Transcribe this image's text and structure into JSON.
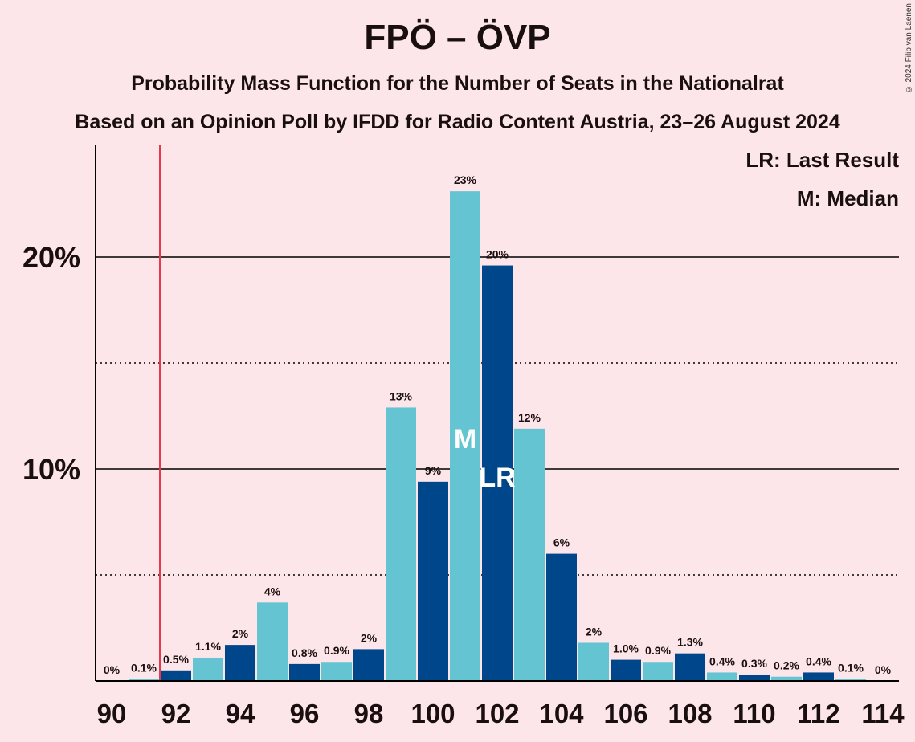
{
  "header": {
    "title": "FPÖ – ÖVP",
    "subtitle": "Probability Mass Function for the Number of Seats in the Nationalrat",
    "subtitle2": "Based on an Opinion Poll by IFDD for Radio Content Austria, 23–26 August 2024",
    "copyright": "© 2024 Filip van Laenen"
  },
  "legend": {
    "lr": "LR: Last Result",
    "median": "M: Median"
  },
  "colors": {
    "background": "#FDE6E9",
    "dark_blue": "#00468B",
    "light_blue": "#64C4D2",
    "last_result_line": "#E8384F",
    "axis": "#000000"
  },
  "chart_data": {
    "type": "bar",
    "x": [
      90,
      91,
      92,
      93,
      94,
      95,
      96,
      97,
      98,
      99,
      100,
      101,
      102,
      103,
      104,
      105,
      106,
      107,
      108,
      109,
      110,
      111,
      112,
      113,
      114
    ],
    "values": [
      0,
      0.1,
      0.5,
      1.1,
      1.7,
      3.7,
      0.8,
      0.9,
      1.5,
      12.9,
      9.4,
      23.1,
      19.6,
      11.9,
      6.0,
      1.8,
      1.0,
      0.9,
      1.3,
      0.4,
      0.3,
      0.2,
      0.4,
      0.1,
      0
    ],
    "labels": [
      "0%",
      "0.1%",
      "0.5%",
      "1.1%",
      "2%",
      "4%",
      "0.8%",
      "0.9%",
      "2%",
      "13%",
      "9%",
      "23%",
      "20%",
      "12%",
      "6%",
      "2%",
      "1.0%",
      "0.9%",
      "1.3%",
      "0.4%",
      "0.3%",
      "0.2%",
      "0.4%",
      "0.1%",
      "0%"
    ],
    "x_tick_labels": [
      "90",
      "92",
      "94",
      "96",
      "98",
      "100",
      "102",
      "104",
      "106",
      "108",
      "110",
      "112",
      "114"
    ],
    "y_tick_labels": [
      "10%",
      "20%"
    ],
    "ylim": [
      0,
      25
    ],
    "y_gridlines_solid": [
      10,
      20
    ],
    "y_gridlines_dotted": [
      5,
      15
    ],
    "median_seat": 101,
    "median_mark": "M",
    "last_result_seat": 102,
    "last_result_mark": "LR",
    "last_result_line_x": 91.5
  }
}
